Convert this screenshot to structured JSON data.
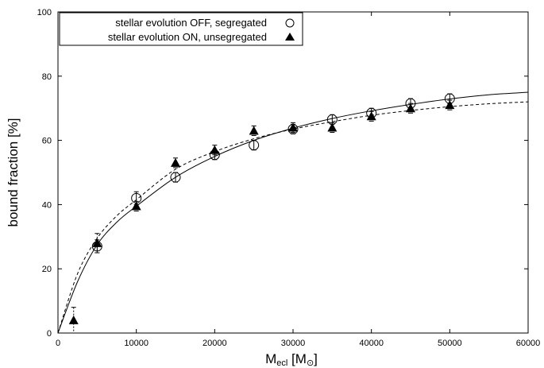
{
  "chart_data": {
    "type": "scatter",
    "title": "",
    "ylabel": "bound fraction [%]",
    "xlabel": {
      "main": "M",
      "sub": "ecl",
      "unit_open": " [M",
      "unit_sub": "⊙",
      "unit_close": "]"
    },
    "xlim": [
      0,
      60000
    ],
    "ylim": [
      0,
      100
    ],
    "xticks": [
      0,
      10000,
      20000,
      30000,
      40000,
      50000,
      60000
    ],
    "yticks": [
      0,
      20,
      40,
      60,
      80,
      100
    ],
    "grid": false,
    "legend_position": "top-left",
    "series": [
      {
        "name": "stellar evolution OFF, segregated",
        "marker": "open-circle",
        "points": [
          {
            "x": 5000,
            "y": 27,
            "err": 2
          },
          {
            "x": 10000,
            "y": 42,
            "err": 2
          },
          {
            "x": 15000,
            "y": 48.5,
            "err": 1.5
          },
          {
            "x": 20000,
            "y": 55.5,
            "err": 1.5
          },
          {
            "x": 25000,
            "y": 58.5,
            "err": 1.5
          },
          {
            "x": 30000,
            "y": 63.5,
            "err": 1.5
          },
          {
            "x": 35000,
            "y": 66.5,
            "err": 1.5
          },
          {
            "x": 40000,
            "y": 68.5,
            "err": 1.5
          },
          {
            "x": 45000,
            "y": 71.5,
            "err": 1.5
          },
          {
            "x": 50000,
            "y": 73,
            "err": 1.5
          }
        ],
        "fit_curve": [
          [
            0,
            0
          ],
          [
            2500,
            16
          ],
          [
            5000,
            27.5
          ],
          [
            7500,
            34.5
          ],
          [
            10000,
            39.5
          ],
          [
            15000,
            48.5
          ],
          [
            20000,
            55
          ],
          [
            25000,
            60
          ],
          [
            30000,
            63.8
          ],
          [
            35000,
            66.8
          ],
          [
            40000,
            69.2
          ],
          [
            45000,
            71.2
          ],
          [
            50000,
            72.9
          ],
          [
            55000,
            74.2
          ],
          [
            60000,
            75
          ]
        ],
        "fit_style": "solid"
      },
      {
        "name": "stellar evolution ON, unsegregated",
        "marker": "filled-triangle",
        "points": [
          {
            "x": 2000,
            "y": 4,
            "err": 4
          },
          {
            "x": 5000,
            "y": 28,
            "err": 3
          },
          {
            "x": 10000,
            "y": 39.5,
            "err": 1.5
          },
          {
            "x": 15000,
            "y": 53,
            "err": 1.5
          },
          {
            "x": 20000,
            "y": 57,
            "err": 1.5
          },
          {
            "x": 25000,
            "y": 63,
            "err": 1.5
          },
          {
            "x": 30000,
            "y": 64,
            "err": 1.5
          },
          {
            "x": 35000,
            "y": 64,
            "err": 1.5
          },
          {
            "x": 40000,
            "y": 67.5,
            "err": 1.5
          },
          {
            "x": 45000,
            "y": 70,
            "err": 1.5
          },
          {
            "x": 50000,
            "y": 71,
            "err": 1.5
          }
        ],
        "fit_curve": [
          [
            0,
            0
          ],
          [
            2500,
            18.5
          ],
          [
            5000,
            29.5
          ],
          [
            7500,
            36.5
          ],
          [
            10000,
            41.5
          ],
          [
            15000,
            51
          ],
          [
            20000,
            56.5
          ],
          [
            25000,
            60.5
          ],
          [
            30000,
            63.5
          ],
          [
            35000,
            65.8
          ],
          [
            40000,
            67.8
          ],
          [
            45000,
            69.3
          ],
          [
            50000,
            70.5
          ],
          [
            55000,
            71.4
          ],
          [
            60000,
            72
          ]
        ],
        "fit_style": "dashed"
      }
    ]
  }
}
